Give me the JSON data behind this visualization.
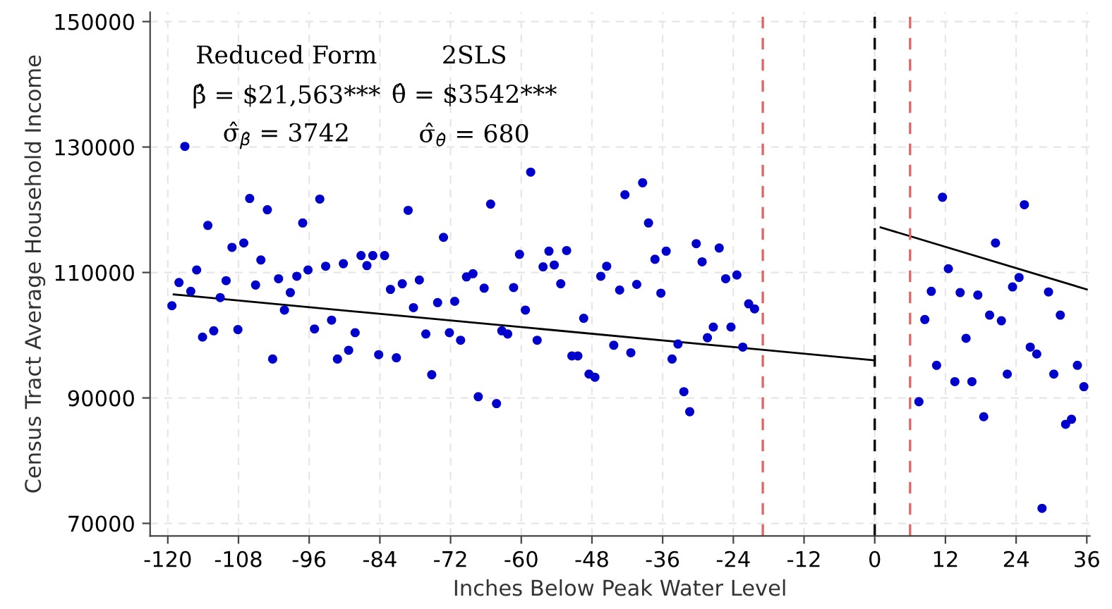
{
  "chart_data": {
    "type": "scatter",
    "xlabel": "Inches Below Peak Water Level",
    "ylabel": "Census Tract Average Household Income",
    "xlim": [
      -123,
      36.5
    ],
    "ylim": [
      68000,
      151500
    ],
    "xticks": [
      -120,
      -108,
      -96,
      -84,
      -72,
      -60,
      -48,
      -36,
      -24,
      -12,
      0,
      12,
      24,
      36
    ],
    "yticks": [
      70000,
      90000,
      110000,
      130000,
      150000
    ],
    "grid": true,
    "annotations": [
      "Reduced Form",
      "2SLS",
      "β̂ = $21,563***",
      "θ̂ = $3542***",
      "σ̂$_{β̂}$ = 3742",
      "σ̂$_{θ̂}$ = 680"
    ],
    "ref_lines": [
      {
        "axis": "x",
        "value": -19,
        "color": "#e06666",
        "line_style": "dashed"
      },
      {
        "axis": "x",
        "value": 0,
        "color": "#000000",
        "line_style": "dashed"
      },
      {
        "axis": "x",
        "value": 6,
        "color": "#e06666",
        "line_style": "dashed"
      }
    ],
    "series": [
      {
        "marker": "circle",
        "color": "#0000cc",
        "x": [
          -119.3,
          -118.1,
          -115.1,
          -116.1,
          -114.1,
          -112.2,
          -111.1,
          -110.1,
          -108.1,
          -105.1,
          -104.2,
          -102.2,
          -101.2,
          -100.2,
          -99.2,
          -98.1,
          -96.2,
          -95.1,
          -93.2,
          -92.2,
          -91.2,
          -90.2,
          -89.3,
          -88.2,
          -87.2,
          -86.2,
          -85.2,
          -84.2,
          -83.2,
          -82.2,
          -81.2,
          -80.2,
          -78.3,
          -77.3,
          -76.2,
          -75.2,
          -74.2,
          -72.2,
          -71.3,
          -70.3,
          -69.3,
          -68.2,
          -67.3,
          -66.3,
          -64.2,
          -63.3,
          -62.3,
          -61.3,
          -60.3,
          -59.3,
          -57.3,
          -56.3,
          -54.4,
          -53.3,
          -51.4,
          -50.4,
          -49.4,
          -48.5,
          -47.5,
          -46.5,
          -45.5,
          -117.1,
          -113.2,
          -109.1,
          -107.1,
          -106.1,
          -103.1,
          -97.1,
          -94.2,
          -79.2,
          -73.2,
          -65.2,
          -58.4,
          -55.3,
          -52.3,
          -42.4,
          -39.4,
          -38.4,
          -37.3,
          -35.4,
          -30.3,
          -29.3,
          -26.4,
          -23.4,
          -25.3,
          -43.3,
          -40.4,
          -36.3,
          -44.3,
          -41.4,
          -34.4,
          -33.4,
          -32.4,
          -31.4,
          -28.4,
          -27.4,
          -24.4,
          -22.4,
          -21.4,
          -20.4,
          11.5,
          25.4,
          20.5,
          12.5,
          24.5,
          23.4,
          9.6,
          14.5,
          17.5,
          29.5,
          8.5,
          19.5,
          21.5,
          31.5,
          15.5,
          26.4,
          27.5,
          10.5,
          34.4,
          13.6,
          16.5,
          22.5,
          30.4,
          35.5,
          7.5,
          18.5,
          32.4,
          33.4,
          28.4
        ],
        "values": [
          104700,
          108400,
          110400,
          107000,
          99700,
          100700,
          106000,
          108700,
          100900,
          108000,
          112000,
          96200,
          109000,
          104000,
          106800,
          109400,
          110400,
          101000,
          111000,
          102400,
          96200,
          111400,
          97600,
          100400,
          112700,
          111100,
          112700,
          96900,
          112700,
          107300,
          96400,
          108200,
          104400,
          108800,
          100200,
          93700,
          105200,
          100400,
          105400,
          99200,
          109300,
          109800,
          90200,
          107500,
          89100,
          100700,
          100200,
          107600,
          112900,
          104000,
          99200,
          110900,
          111200,
          108200,
          96700,
          96700,
          102700,
          93800,
          93300,
          109400,
          111000,
          130100,
          117500,
          114000,
          114700,
          121800,
          120000,
          117900,
          121700,
          119900,
          115600,
          120900,
          126000,
          113400,
          113500,
          122400,
          124300,
          117900,
          112100,
          113400,
          114600,
          111700,
          113900,
          109600,
          109000,
          107200,
          108100,
          106700,
          98400,
          97200,
          96200,
          98600,
          91000,
          87800,
          99600,
          101300,
          101300,
          98100,
          105000,
          104200,
          122000,
          120800,
          114700,
          110600,
          109200,
          107700,
          107000,
          106800,
          106400,
          106900,
          102500,
          103200,
          102300,
          103200,
          99500,
          98100,
          97000,
          95200,
          95200,
          92600,
          92600,
          93800,
          93800,
          91800,
          89400,
          87000,
          85800,
          86600,
          72400
        ]
      },
      {
        "type": "line",
        "color": "#000000",
        "x": [
          -119,
          0
        ],
        "values": [
          106500,
          96000
        ]
      },
      {
        "type": "line",
        "color": "#000000",
        "x": [
          1,
          36
        ],
        "values": [
          117200,
          107300
        ]
      }
    ]
  }
}
